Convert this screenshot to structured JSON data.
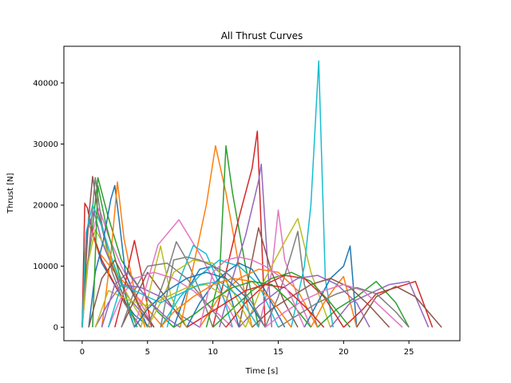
{
  "chart_data": {
    "type": "line",
    "title": "All Thrust Curves",
    "xlabel": "Time [s]",
    "ylabel": "Thrust [N]",
    "xlim": [
      -1.4,
      28.9
    ],
    "ylim": [
      -2200,
      46000
    ],
    "xticks": [
      0,
      5,
      10,
      15,
      20,
      25
    ],
    "yticks": [
      0,
      10000,
      20000,
      30000,
      40000
    ],
    "grid": false,
    "legend": "none",
    "colors": [
      "#1f77b4",
      "#ff7f0e",
      "#2ca02c",
      "#d62728",
      "#9467bd",
      "#8c564b",
      "#e377c2",
      "#7f7f7f",
      "#bcbd22",
      "#17becf"
    ],
    "series": [
      {
        "x": [
          0,
          0.3,
          0.6,
          1.0,
          1.5,
          2.2,
          3.0,
          4.0,
          5.2
        ],
        "y": [
          0,
          15000,
          17500,
          14000,
          10500,
          8000,
          5000,
          2000,
          0
        ]
      },
      {
        "x": [
          0,
          0.2,
          0.5,
          1.2,
          2.5,
          3.8,
          5.0,
          6.2
        ],
        "y": [
          0,
          12000,
          17000,
          12500,
          9000,
          6000,
          3000,
          0
        ]
      },
      {
        "x": [
          0,
          0.3,
          0.7,
          1.2,
          2.0,
          3.0,
          4.5,
          5.8,
          7.0
        ],
        "y": [
          0,
          9000,
          14500,
          24500,
          18000,
          11000,
          6000,
          2500,
          0
        ]
      },
      {
        "x": [
          0,
          0.2,
          0.4,
          0.8,
          1.5,
          2.5,
          3.5,
          4.5
        ],
        "y": [
          0,
          20300,
          19500,
          15500,
          11000,
          7000,
          3000,
          0
        ]
      },
      {
        "x": [
          0,
          0.4,
          0.9,
          1.5,
          2.5,
          3.5,
          4.5,
          5.5
        ],
        "y": [
          0,
          16000,
          19000,
          14000,
          9000,
          5000,
          2500,
          0
        ]
      },
      {
        "x": [
          0,
          0.5,
          0.8,
          1.2,
          2.0,
          3.0,
          4.0
        ],
        "y": [
          0,
          18000,
          24700,
          19000,
          12000,
          6000,
          0
        ]
      },
      {
        "x": [
          0,
          0.6,
          1.3,
          2.0,
          3.0,
          4.2,
          5.5
        ],
        "y": [
          0,
          14000,
          19500,
          15000,
          10000,
          5000,
          0
        ]
      },
      {
        "x": [
          0,
          0.5,
          1.0,
          1.5,
          2.3,
          3.2,
          4.5
        ],
        "y": [
          0,
          12000,
          24500,
          17000,
          9000,
          4000,
          0
        ]
      },
      {
        "x": [
          0,
          0.4,
          1.0,
          1.8,
          2.8,
          3.8,
          5.0
        ],
        "y": [
          0,
          10000,
          16000,
          13000,
          8000,
          4000,
          0
        ]
      },
      {
        "x": [
          0,
          0.3,
          0.8,
          1.5,
          2.3,
          3.2,
          4.0
        ],
        "y": [
          0,
          15500,
          20000,
          16500,
          11000,
          6000,
          0
        ]
      },
      {
        "x": [
          0.5,
          1.0,
          1.6,
          2.2,
          2.5,
          2.8,
          3.3,
          4.2,
          5.0
        ],
        "y": [
          0,
          9000,
          14000,
          21000,
          23200,
          18000,
          9000,
          4000,
          0
        ]
      },
      {
        "x": [
          1.5,
          2.2,
          2.7,
          3.2,
          4.0,
          4.8
        ],
        "y": [
          0,
          12000,
          23800,
          14500,
          6000,
          0
        ]
      },
      {
        "x": [
          0.8,
          1.2,
          1.8,
          2.8,
          3.5,
          4.2
        ],
        "y": [
          0,
          23200,
          17000,
          9000,
          4000,
          0
        ]
      },
      {
        "x": [
          2.5,
          3.1,
          3.6,
          4.0,
          4.6,
          5.3
        ],
        "y": [
          0,
          5000,
          10500,
          14200,
          8000,
          0
        ]
      },
      {
        "x": [
          1.0,
          2.0,
          3.0,
          4.5,
          6.0,
          7.5,
          9.0
        ],
        "y": [
          0,
          4000,
          7000,
          6500,
          5000,
          2000,
          0
        ]
      },
      {
        "x": [
          3.0,
          4.0,
          5.0,
          6.0,
          7.0,
          8.0
        ],
        "y": [
          0,
          4500,
          9000,
          6000,
          3000,
          0
        ]
      },
      {
        "x": [
          4.0,
          5.8,
          7.4,
          9.0,
          10.5,
          12.0
        ],
        "y": [
          0,
          13500,
          17600,
          12000,
          6000,
          0
        ]
      },
      {
        "x": [
          5.0,
          6.5,
          7.2,
          8.0,
          9.0,
          10.0
        ],
        "y": [
          0,
          9000,
          14000,
          11000,
          6000,
          0
        ]
      },
      {
        "x": [
          4.5,
          5.5,
          6.0,
          6.8,
          8.0
        ],
        "y": [
          0,
          9000,
          13300,
          5000,
          0
        ]
      },
      {
        "x": [
          6.5,
          7.5,
          8.5,
          9.5,
          10.5,
          11.5
        ],
        "y": [
          0,
          8000,
          13400,
          12000,
          7000,
          0
        ]
      },
      {
        "x": [
          7.0,
          8.0,
          9.0,
          10.0,
          11.0,
          12.0
        ],
        "y": [
          0,
          6000,
          9500,
          10000,
          8000,
          0
        ]
      },
      {
        "x": [
          7.5,
          8.5,
          9.5,
          10.2,
          11.0,
          12.0,
          13.0
        ],
        "y": [
          0,
          10000,
          20000,
          29700,
          22000,
          10000,
          0
        ]
      },
      {
        "x": [
          9.5,
          10.5,
          11.0,
          11.5,
          12.5,
          13.5
        ],
        "y": [
          0,
          8000,
          29700,
          22000,
          10000,
          0
        ]
      },
      {
        "x": [
          10.0,
          11.0,
          12.0,
          13.0,
          13.4,
          14.0
        ],
        "y": [
          0,
          9000,
          18000,
          26000,
          32100,
          0
        ]
      },
      {
        "x": [
          10.5,
          11.5,
          12.5,
          13.5,
          13.7,
          14.5
        ],
        "y": [
          0,
          8000,
          15000,
          24000,
          26700,
          0
        ]
      },
      {
        "x": [
          12.0,
          13.0,
          13.5,
          14.5,
          15.5,
          16.5
        ],
        "y": [
          0,
          11000,
          16300,
          9000,
          4000,
          0
        ]
      },
      {
        "x": [
          13.5,
          14.5,
          15.0,
          15.5,
          16.5,
          17.5
        ],
        "y": [
          0,
          9000,
          19200,
          11000,
          5000,
          0
        ]
      },
      {
        "x": [
          14.0,
          15.0,
          16.0,
          16.5,
          17.0,
          18.0
        ],
        "y": [
          0,
          5000,
          12000,
          15700,
          7000,
          0
        ]
      },
      {
        "x": [
          12.5,
          14.0,
          15.5,
          16.5,
          17.5,
          19.0
        ],
        "y": [
          0,
          8000,
          14000,
          17800,
          9000,
          0
        ]
      },
      {
        "x": [
          16.0,
          17.0,
          17.5,
          18.1,
          18.6,
          19.2
        ],
        "y": [
          0,
          10000,
          20000,
          43600,
          8000,
          0
        ]
      },
      {
        "x": [
          17.0,
          18.0,
          19.0,
          20.0,
          20.5,
          21.0
        ],
        "y": [
          0,
          4000,
          8000,
          10000,
          13300,
          0
        ]
      },
      {
        "x": [
          17.5,
          18.5,
          19.5,
          20.0,
          21.0
        ],
        "y": [
          0,
          4000,
          7000,
          8300,
          0
        ]
      },
      {
        "x": [
          18.0,
          19.5,
          21.0,
          22.5,
          24.0,
          25.0
        ],
        "y": [
          0,
          3000,
          5000,
          7500,
          4000,
          0
        ]
      },
      {
        "x": [
          20.0,
          21.5,
          22.5,
          24.0,
          25.5,
          26.8
        ],
        "y": [
          0,
          3000,
          5500,
          6500,
          7500,
          0
        ]
      },
      {
        "x": [
          19.0,
          20.5,
          22.0,
          23.5,
          25.0,
          26.5
        ],
        "y": [
          0,
          4000,
          5500,
          7000,
          7500,
          0
        ]
      },
      {
        "x": [
          21.0,
          22.5,
          24.0,
          25.5,
          27.5
        ],
        "y": [
          0,
          5000,
          6700,
          5000,
          0
        ]
      },
      {
        "x": [
          2.0,
          3.0,
          4.0,
          5.5,
          7.0,
          8.5,
          10.0,
          11.5
        ],
        "y": [
          0,
          5000,
          8000,
          9000,
          8000,
          6000,
          3000,
          0
        ]
      },
      {
        "x": [
          3.0,
          4.0,
          5.0,
          6.5,
          8.0,
          9.5,
          11.0
        ],
        "y": [
          0,
          6000,
          10000,
          10500,
          8000,
          4000,
          0
        ]
      },
      {
        "x": [
          5.0,
          6.0,
          7.0,
          8.5,
          10.0,
          11.5,
          13.0
        ],
        "y": [
          0,
          4000,
          9000,
          11000,
          10500,
          6000,
          0
        ]
      },
      {
        "x": [
          6.0,
          7.5,
          9.0,
          10.5,
          12.0,
          13.5,
          15.0
        ],
        "y": [
          0,
          5000,
          8500,
          11000,
          10000,
          7000,
          0
        ]
      },
      {
        "x": [
          8.0,
          9.0,
          10.0,
          11.0,
          12.0,
          13.0,
          14.0,
          15.5
        ],
        "y": [
          0,
          4000,
          7000,
          9000,
          10500,
          9500,
          6000,
          0
        ]
      },
      {
        "x": [
          9.0,
          10.5,
          12.0,
          13.5,
          15.0,
          16.5,
          18.0
        ],
        "y": [
          0,
          5000,
          8000,
          9500,
          9000,
          6000,
          0
        ]
      },
      {
        "x": [
          10.0,
          11.5,
          13.0,
          14.5,
          16.0,
          17.5,
          19.0,
          20.5
        ],
        "y": [
          0,
          3000,
          6000,
          8000,
          9000,
          7500,
          4000,
          0
        ]
      },
      {
        "x": [
          11.0,
          12.5,
          14.0,
          15.5,
          17.0,
          18.5,
          20.0
        ],
        "y": [
          0,
          4000,
          7000,
          8500,
          8000,
          5000,
          0
        ]
      },
      {
        "x": [
          12.0,
          13.5,
          15.0,
          16.5,
          18.0,
          19.5,
          21.0,
          22.0
        ],
        "y": [
          0,
          3500,
          6000,
          8000,
          8500,
          7000,
          4000,
          0
        ]
      },
      {
        "x": [
          13.0,
          14.5,
          16.0,
          17.5,
          19.0,
          20.5,
          22.0,
          23.5
        ],
        "y": [
          0,
          3000,
          5000,
          7000,
          8000,
          6500,
          3500,
          0
        ]
      },
      {
        "x": [
          14.0,
          15.5,
          17.0,
          18.5,
          20.0,
          21.5,
          23.0,
          24.5
        ],
        "y": [
          0,
          2500,
          4500,
          6000,
          7000,
          6000,
          3000,
          0
        ]
      },
      {
        "x": [
          15.0,
          16.5,
          18.0,
          19.5,
          21.0,
          22.5,
          24.0,
          25.0
        ],
        "y": [
          0,
          2000,
          4000,
          5500,
          6500,
          5500,
          2500,
          0
        ]
      },
      {
        "x": [
          1.0,
          2.0,
          3.5,
          5.0,
          6.5,
          8.0,
          9.5,
          11.0,
          12.5
        ],
        "y": [
          0,
          6000,
          4500,
          3500,
          5000,
          6500,
          7000,
          5000,
          0
        ]
      },
      {
        "x": [
          2.0,
          3.0,
          4.5,
          6.0,
          7.5,
          9.0,
          10.5,
          12.0,
          13.5
        ],
        "y": [
          0,
          7000,
          5500,
          4000,
          5500,
          7000,
          7500,
          5000,
          0
        ]
      },
      {
        "x": [
          4.0,
          5.0,
          6.5,
          8.0,
          9.5,
          11.0,
          12.5,
          14.0
        ],
        "y": [
          0,
          3000,
          6000,
          8000,
          9000,
          8000,
          5000,
          0
        ]
      },
      {
        "x": [
          6.0,
          7.0,
          8.5,
          10.0,
          11.5,
          13.0,
          14.5,
          16.0
        ],
        "y": [
          0,
          2500,
          5000,
          7000,
          8000,
          7500,
          4500,
          0
        ]
      },
      {
        "x": [
          7.0,
          8.5,
          10.0,
          11.5,
          13.0,
          14.5,
          16.0,
          17.5
        ],
        "y": [
          0,
          2000,
          4500,
          6500,
          7500,
          7000,
          4000,
          0
        ]
      },
      {
        "x": [
          8.0,
          9.5,
          11.0,
          12.5,
          14.0,
          15.5,
          17.0,
          18.5
        ],
        "y": [
          0,
          2000,
          4000,
          6000,
          7000,
          6500,
          3500,
          0
        ]
      },
      {
        "x": [
          1.5,
          2.5,
          3.5,
          4.5,
          5.5,
          6.5,
          7.5
        ],
        "y": [
          0,
          7000,
          9000,
          6000,
          3500,
          1500,
          0
        ]
      },
      {
        "x": [
          0.5,
          1.5,
          2.5,
          3.5,
          4.5,
          5.5
        ],
        "y": [
          0,
          8000,
          11000,
          7000,
          3000,
          0
        ]
      },
      {
        "x": [
          9.0,
          10.0,
          11.0,
          12.0,
          13.0,
          14.0,
          15.0,
          16.0,
          17.0
        ],
        "y": [
          0,
          9000,
          11000,
          11500,
          11000,
          10000,
          8500,
          5000,
          0
        ]
      },
      {
        "x": [
          6.0,
          7.0,
          8.0,
          9.0,
          10.0,
          11.0,
          12.0,
          13.0,
          14.0
        ],
        "y": [
          0,
          11000,
          11500,
          11000,
          10000,
          9000,
          7000,
          4000,
          0
        ]
      }
    ]
  }
}
